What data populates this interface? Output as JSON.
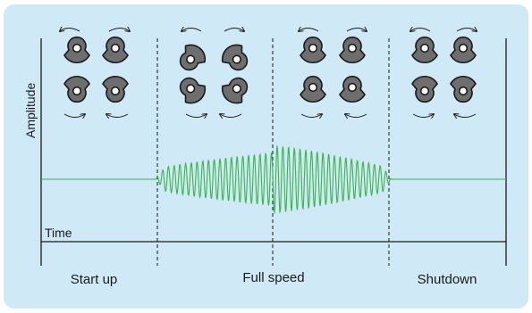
{
  "axes": {
    "y_label": "Amplitude",
    "x_label": "Time"
  },
  "phases": [
    {
      "label": "Start up"
    },
    {
      "label": "Full speed"
    },
    {
      "label": "Shutdown"
    }
  ],
  "signal": {
    "color": "#3cb44b",
    "baseline_before": "flat",
    "baseline_after": "flat"
  },
  "weights": {
    "fill": "#6e6e6e",
    "stroke": "#1a1a1a",
    "groups": [
      {
        "phase": "Start up",
        "configuration": "opposed"
      },
      {
        "phase": "Full speed (early)",
        "configuration": "misaligned"
      },
      {
        "phase": "Full speed (late)",
        "configuration": "opposed"
      },
      {
        "phase": "Shutdown",
        "configuration": "opposed"
      }
    ]
  },
  "colors": {
    "background": "#cfe9f7",
    "axis": "#1a1a1a",
    "divider": "#1a1a1a"
  }
}
